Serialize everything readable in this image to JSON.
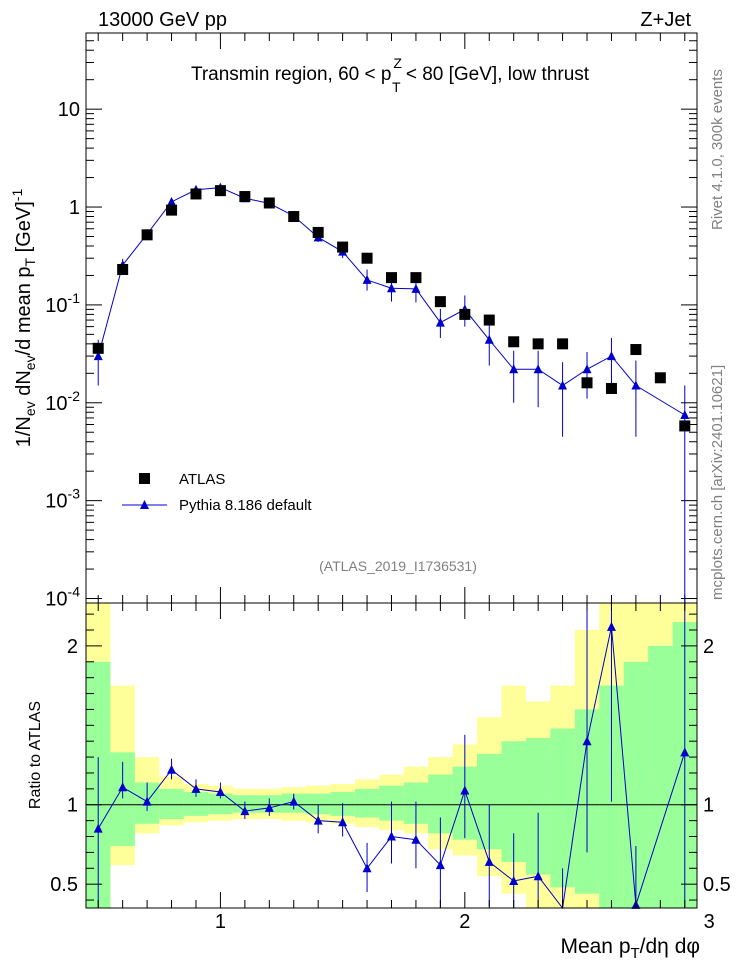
{
  "header": {
    "left": "13000 GeV pp",
    "right": "Z+Jet"
  },
  "side": {
    "rivet": "Rivet 4.1.0,  300k events",
    "mcplots": "mcplots.cern.ch [arXiv:2401.10621]"
  },
  "chart_data": [
    {
      "type": "scatter",
      "panel": "main",
      "title": "Transmin region, 60 < p_T^Z < 80 [GeV], low thrust",
      "title_parts": {
        "pre": "Transmin region, 60 < p",
        "sup": "Z",
        "sub": "T",
        "post": " < 80 [GeV], low thrust"
      },
      "ylabel": "1/N_ev dN_ev/d mean p_T [GeV]^-1",
      "ylabel_parts": {
        "a": "1/N",
        "a_sub": "ev",
        "b": " dN",
        "b_sub": "ev",
        "c": "/d mean p",
        "c_sub": "T",
        "d": " [GeV]",
        "d_sup": "-1"
      },
      "yscale": "log",
      "ylim": [
        9e-05,
        60
      ],
      "xlim": [
        0.45,
        2.95
      ],
      "yticks": [
        {
          "v": 0.0001,
          "base": "10",
          "exp": "-4"
        },
        {
          "v": 0.001,
          "base": "10",
          "exp": "-3"
        },
        {
          "v": 0.01,
          "base": "10",
          "exp": "-2"
        },
        {
          "v": 0.1,
          "base": "10",
          "exp": "-1"
        },
        {
          "v": 1,
          "base": "1",
          "exp": ""
        },
        {
          "v": 10,
          "base": "10",
          "exp": ""
        }
      ],
      "watermark": "(ATLAS_2019_I1736531)",
      "legend": [
        {
          "name": "ATLAS",
          "marker": "square",
          "color": "#000000"
        },
        {
          "name": "Pythia 8.186 default",
          "marker": "triangle",
          "color": "#0000cc"
        }
      ],
      "series": [
        {
          "name": "ATLAS",
          "x": [
            0.5,
            0.6,
            0.7,
            0.8,
            0.9,
            1.0,
            1.1,
            1.2,
            1.3,
            1.4,
            1.5,
            1.6,
            1.7,
            1.8,
            1.9,
            2.0,
            2.1,
            2.2,
            2.3,
            2.4,
            2.5,
            2.6,
            2.7,
            2.8,
            2.9
          ],
          "y": [
            0.036,
            0.23,
            0.52,
            0.93,
            1.36,
            1.47,
            1.28,
            1.1,
            0.8,
            0.55,
            0.39,
            0.3,
            0.19,
            0.19,
            0.108,
            0.08,
            0.07,
            0.042,
            0.04,
            0.04,
            0.016,
            0.014,
            0.035,
            0.018,
            0.0058
          ]
        },
        {
          "name": "Pythia 8.186 default",
          "x": [
            0.5,
            0.6,
            0.7,
            0.8,
            0.9,
            1.0,
            1.1,
            1.2,
            1.3,
            1.4,
            1.5,
            1.6,
            1.7,
            1.8,
            1.9,
            2.0,
            2.1,
            2.2,
            2.3,
            2.4,
            2.5,
            2.6,
            2.7,
            2.9
          ],
          "y": [
            0.03,
            0.255,
            0.53,
            1.13,
            1.5,
            1.58,
            1.23,
            1.09,
            0.81,
            0.49,
            0.35,
            0.18,
            0.148,
            0.146,
            0.066,
            0.09,
            0.044,
            0.022,
            0.022,
            0.015,
            0.022,
            0.03,
            0.015,
            0.0075
          ],
          "yerr_low": [
            0.015,
            0.03,
            0.05,
            0.06,
            0.07,
            0.07,
            0.06,
            0.06,
            0.05,
            0.05,
            0.05,
            0.04,
            0.04,
            0.04,
            0.02,
            0.03,
            0.02,
            0.012,
            0.013,
            0.0105,
            0.011,
            0.015,
            0.0105,
            0.0075
          ],
          "yerr_high": [
            0.014,
            0.04,
            0.06,
            0.08,
            0.09,
            0.08,
            0.07,
            0.07,
            0.06,
            0.06,
            0.06,
            0.05,
            0.05,
            0.05,
            0.025,
            0.035,
            0.025,
            0.012,
            0.012,
            0.011,
            0.011,
            0.016,
            0.012,
            0.0075
          ]
        }
      ]
    },
    {
      "type": "line",
      "panel": "ratio",
      "ylabel": "Ratio to ATLAS",
      "xlabel": "Mean p_T/dη dφ",
      "xlabel_parts": {
        "a": "Mean p",
        "a_sub": "T",
        "b": "/dη dφ"
      },
      "ylim": [
        0.35,
        2.27
      ],
      "xlim": [
        0.45,
        2.95
      ],
      "yticks": [
        0.5,
        1,
        2
      ],
      "xticks": [
        1,
        2,
        3
      ],
      "reference": 1,
      "bins": [
        0.45,
        0.55,
        0.65,
        0.75,
        0.85,
        0.95,
        1.05,
        1.15,
        1.25,
        1.35,
        1.45,
        1.55,
        1.65,
        1.75,
        1.85,
        1.95,
        2.05,
        2.15,
        2.25,
        2.35,
        2.45,
        2.55,
        2.65,
        2.75,
        2.85,
        2.95
      ],
      "band_yellow_low": [
        0.35,
        0.62,
        0.82,
        0.87,
        0.89,
        0.9,
        0.91,
        0.91,
        0.9,
        0.89,
        0.88,
        0.86,
        0.84,
        0.82,
        0.72,
        0.68,
        0.55,
        0.44,
        0.35,
        0.35,
        0.35,
        0.35,
        0.35,
        0.35,
        0.35
      ],
      "band_yellow_high": [
        2.27,
        1.75,
        1.3,
        1.18,
        1.13,
        1.12,
        1.1,
        1.1,
        1.11,
        1.12,
        1.13,
        1.16,
        1.19,
        1.24,
        1.3,
        1.38,
        1.55,
        1.75,
        1.65,
        1.75,
        2.1,
        2.27,
        2.27,
        2.27,
        2.27
      ],
      "band_green_low": [
        0.35,
        0.74,
        0.88,
        0.91,
        0.93,
        0.94,
        0.95,
        0.95,
        0.95,
        0.94,
        0.93,
        0.92,
        0.9,
        0.88,
        0.82,
        0.78,
        0.72,
        0.64,
        0.56,
        0.48,
        0.44,
        0.35,
        0.35,
        0.35,
        0.35
      ],
      "band_green_high": [
        1.9,
        1.33,
        1.14,
        1.1,
        1.08,
        1.07,
        1.06,
        1.06,
        1.07,
        1.07,
        1.08,
        1.1,
        1.12,
        1.14,
        1.19,
        1.24,
        1.32,
        1.4,
        1.42,
        1.48,
        1.6,
        1.75,
        1.9,
        2.0,
        2.15
      ],
      "series": [
        {
          "name": "Pythia 8.186 default / ATLAS",
          "x": [
            0.5,
            0.6,
            0.7,
            0.8,
            0.9,
            1.0,
            1.1,
            1.2,
            1.3,
            1.4,
            1.5,
            1.6,
            1.7,
            1.8,
            1.9,
            2.0,
            2.1,
            2.2,
            2.3,
            2.4,
            2.5,
            2.6,
            2.7,
            2.9
          ],
          "y": [
            0.85,
            1.11,
            1.02,
            1.22,
            1.1,
            1.08,
            0.96,
            0.98,
            1.02,
            0.9,
            0.89,
            0.6,
            0.8,
            0.78,
            0.62,
            1.09,
            0.64,
            0.52,
            0.55,
            0.3,
            1.4,
            2.12,
            0.37,
            1.33
          ],
          "yerr_low": [
            0.5,
            0.07,
            0.06,
            0.06,
            0.05,
            0.04,
            0.05,
            0.05,
            0.05,
            0.08,
            0.09,
            0.15,
            0.17,
            0.18,
            0.3,
            0.3,
            0.28,
            0.22,
            0.3,
            0.3,
            0.7,
            1.1,
            0.37,
            1.33
          ],
          "yerr_high": [
            0.45,
            0.16,
            0.12,
            0.07,
            0.06,
            0.06,
            0.06,
            0.06,
            0.05,
            0.1,
            0.12,
            0.16,
            0.22,
            0.24,
            0.3,
            0.35,
            0.36,
            0.3,
            0.4,
            0.3,
            0.9,
            0.15,
            0.37,
            1.0
          ]
        }
      ]
    }
  ]
}
